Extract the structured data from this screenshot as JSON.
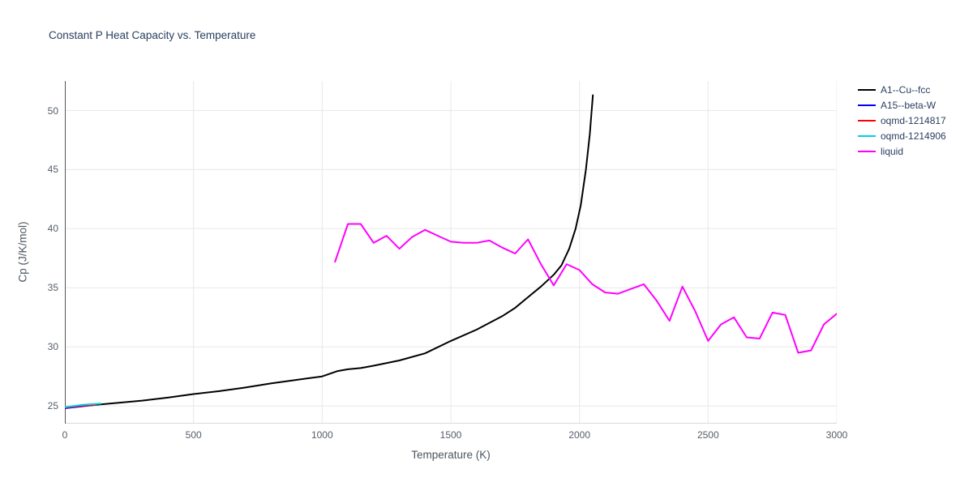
{
  "chart_data": {
    "type": "line",
    "title": "Constant P Heat Capacity vs. Temperature",
    "xlabel": "Temperature (K)",
    "ylabel": "Cp (J/K/mol)",
    "xlim": [
      0,
      3000
    ],
    "ylim": [
      23.5,
      52.5
    ],
    "xticks": [
      0,
      500,
      1000,
      1500,
      2000,
      2500,
      3000
    ],
    "yticks": [
      25,
      30,
      35,
      40,
      45,
      50
    ],
    "grid": true,
    "legend_position": "top-right-outside",
    "series": [
      {
        "id": "a1-cu-fcc",
        "name": "A1--Cu--fcc",
        "color": "#000000",
        "width": 2,
        "points": [
          [
            0,
            24.9
          ],
          [
            100,
            25.05
          ],
          [
            200,
            25.25
          ],
          [
            300,
            25.45
          ],
          [
            400,
            25.7
          ],
          [
            500,
            26.0
          ],
          [
            600,
            26.25
          ],
          [
            700,
            26.55
          ],
          [
            800,
            26.9
          ],
          [
            900,
            27.2
          ],
          [
            1000,
            27.5
          ],
          [
            1060,
            27.95
          ],
          [
            1100,
            28.1
          ],
          [
            1150,
            28.2
          ],
          [
            1200,
            28.4
          ],
          [
            1300,
            28.85
          ],
          [
            1400,
            29.45
          ],
          [
            1500,
            30.5
          ],
          [
            1600,
            31.45
          ],
          [
            1700,
            32.6
          ],
          [
            1750,
            33.3
          ],
          [
            1800,
            34.2
          ],
          [
            1850,
            35.1
          ],
          [
            1900,
            36.1
          ],
          [
            1930,
            36.9
          ],
          [
            1960,
            38.3
          ],
          [
            1985,
            40.0
          ],
          [
            2005,
            42.0
          ],
          [
            2025,
            45.0
          ],
          [
            2040,
            48.0
          ],
          [
            2052,
            51.3
          ]
        ]
      },
      {
        "id": "a15-beta-w",
        "name": "A15--beta-W",
        "color": "#0000ff",
        "width": 2,
        "points": [
          [
            0,
            24.8
          ],
          [
            60,
            24.95
          ],
          [
            120,
            25.1
          ]
        ]
      },
      {
        "id": "oqmd-1214817",
        "name": "oqmd-1214817",
        "color": "#ff0000",
        "width": 2,
        "points": [
          [
            0,
            24.85
          ],
          [
            60,
            25.0
          ],
          [
            120,
            25.1
          ]
        ]
      },
      {
        "id": "oqmd-1214906",
        "name": "oqmd-1214906",
        "color": "#00cdee",
        "width": 2,
        "points": [
          [
            0,
            24.9
          ],
          [
            70,
            25.1
          ],
          [
            140,
            25.2
          ]
        ]
      },
      {
        "id": "liquid",
        "name": "liquid",
        "color": "#ff00ff",
        "width": 2,
        "points": [
          [
            1050,
            37.2
          ],
          [
            1100,
            40.4
          ],
          [
            1150,
            40.4
          ],
          [
            1200,
            38.8
          ],
          [
            1250,
            39.4
          ],
          [
            1300,
            38.3
          ],
          [
            1350,
            39.3
          ],
          [
            1400,
            39.9
          ],
          [
            1450,
            39.4
          ],
          [
            1500,
            38.9
          ],
          [
            1550,
            38.8
          ],
          [
            1600,
            38.8
          ],
          [
            1650,
            39.0
          ],
          [
            1700,
            38.4
          ],
          [
            1750,
            37.9
          ],
          [
            1800,
            39.1
          ],
          [
            1850,
            37.0
          ],
          [
            1900,
            35.2
          ],
          [
            1950,
            37.0
          ],
          [
            2000,
            36.5
          ],
          [
            2050,
            35.3
          ],
          [
            2100,
            34.6
          ],
          [
            2150,
            34.5
          ],
          [
            2200,
            34.9
          ],
          [
            2250,
            35.3
          ],
          [
            2300,
            33.9
          ],
          [
            2350,
            32.2
          ],
          [
            2400,
            35.1
          ],
          [
            2450,
            33.0
          ],
          [
            2500,
            30.5
          ],
          [
            2550,
            31.9
          ],
          [
            2600,
            32.5
          ],
          [
            2650,
            30.8
          ],
          [
            2700,
            30.7
          ],
          [
            2750,
            32.9
          ],
          [
            2800,
            32.7
          ],
          [
            2850,
            29.5
          ],
          [
            2900,
            29.7
          ],
          [
            2950,
            31.9
          ],
          [
            3000,
            32.8
          ]
        ]
      }
    ]
  }
}
